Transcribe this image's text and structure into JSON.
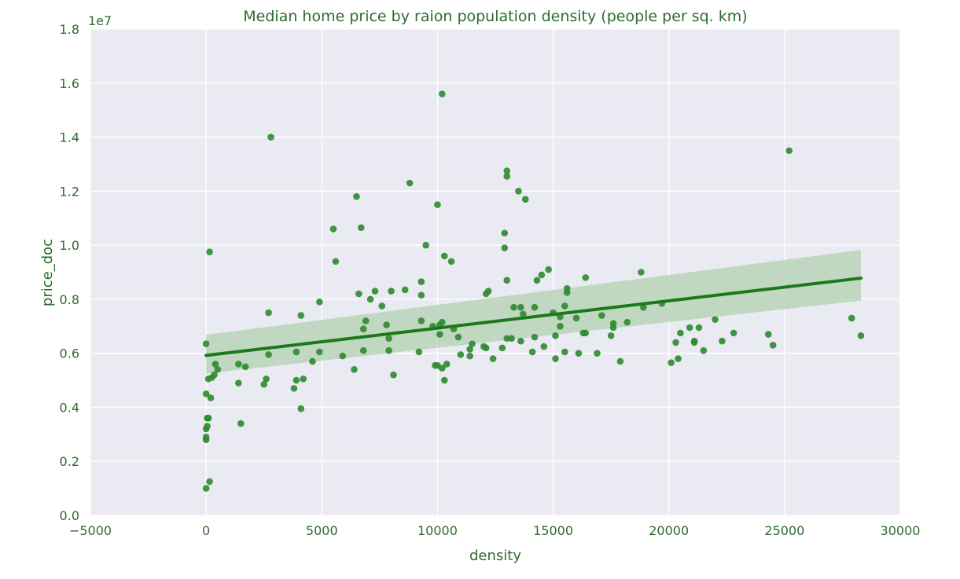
{
  "chart_data": {
    "type": "scatter",
    "title": "Median home price by raion population density (people per sq. km)",
    "xlabel": "density",
    "ylabel": "price_doc",
    "y_offset_label": "1e7",
    "xlim": [
      -5000,
      30000
    ],
    "ylim": [
      0,
      1.8
    ],
    "y_scale_multiplier": 10000000,
    "xticks": [
      -5000,
      0,
      5000,
      10000,
      15000,
      20000,
      25000,
      30000
    ],
    "yticks": [
      0.0,
      0.2,
      0.4,
      0.6,
      0.8,
      1.0,
      1.2,
      1.4,
      1.6,
      1.8
    ],
    "grid": true,
    "colors": {
      "background": "#eaeaf2",
      "grid": "#ffffff",
      "points": "#2e8b2e",
      "line": "#1a7a1a",
      "band": "#b9d4b9",
      "text": "#2e6b2e"
    },
    "regression": {
      "x": [
        0,
        28300
      ],
      "y": [
        0.592,
        0.878
      ],
      "ci_lower": [
        0.525,
        0.795
      ],
      "ci_upper": [
        0.668,
        0.982
      ]
    },
    "points": [
      [
        0,
        0.1
      ],
      [
        0,
        0.29
      ],
      [
        0,
        0.28
      ],
      [
        0,
        0.32
      ],
      [
        50,
        0.36
      ],
      [
        50,
        0.33
      ],
      [
        100,
        0.36
      ],
      [
        0,
        0.45
      ],
      [
        0,
        0.635
      ],
      [
        150,
        0.975
      ],
      [
        100,
        0.505
      ],
      [
        250,
        0.51
      ],
      [
        200,
        0.435
      ],
      [
        350,
        0.52
      ],
      [
        400,
        0.56
      ],
      [
        500,
        0.54
      ],
      [
        150,
        0.125
      ],
      [
        1400,
        0.56
      ],
      [
        1400,
        0.49
      ],
      [
        1500,
        0.34
      ],
      [
        1700,
        0.55
      ],
      [
        2500,
        0.485
      ],
      [
        2600,
        0.505
      ],
      [
        2700,
        0.595
      ],
      [
        2700,
        0.75
      ],
      [
        2800,
        1.4
      ],
      [
        3800,
        0.47
      ],
      [
        3900,
        0.5
      ],
      [
        3900,
        0.605
      ],
      [
        4100,
        0.395
      ],
      [
        4100,
        0.74
      ],
      [
        4200,
        0.505
      ],
      [
        4600,
        0.57
      ],
      [
        4900,
        0.605
      ],
      [
        4900,
        0.79
      ],
      [
        5500,
        1.06
      ],
      [
        5600,
        0.94
      ],
      [
        5900,
        0.59
      ],
      [
        6400,
        0.54
      ],
      [
        6500,
        1.18
      ],
      [
        6600,
        0.82
      ],
      [
        6700,
        1.065
      ],
      [
        6800,
        0.61
      ],
      [
        6800,
        0.69
      ],
      [
        6900,
        0.72
      ],
      [
        7100,
        0.8
      ],
      [
        7300,
        0.83
      ],
      [
        7600,
        0.775
      ],
      [
        7800,
        0.705
      ],
      [
        7900,
        0.61
      ],
      [
        7900,
        0.655
      ],
      [
        8000,
        0.83
      ],
      [
        8100,
        0.52
      ],
      [
        8600,
        0.835
      ],
      [
        8800,
        1.23
      ],
      [
        9200,
        0.605
      ],
      [
        9300,
        0.72
      ],
      [
        9300,
        0.815
      ],
      [
        9300,
        0.865
      ],
      [
        9500,
        1.0
      ],
      [
        9800,
        0.7
      ],
      [
        9900,
        0.555
      ],
      [
        10000,
        0.555
      ],
      [
        10000,
        1.15
      ],
      [
        10100,
        0.705
      ],
      [
        10100,
        0.67
      ],
      [
        10200,
        0.715
      ],
      [
        10200,
        0.545
      ],
      [
        10200,
        1.56
      ],
      [
        10300,
        0.96
      ],
      [
        10300,
        0.5
      ],
      [
        10400,
        0.56
      ],
      [
        10600,
        0.94
      ],
      [
        10700,
        0.69
      ],
      [
        10900,
        0.66
      ],
      [
        11000,
        0.595
      ],
      [
        11400,
        0.59
      ],
      [
        11400,
        0.615
      ],
      [
        11500,
        0.635
      ],
      [
        12000,
        0.625
      ],
      [
        12100,
        0.62
      ],
      [
        12100,
        0.82
      ],
      [
        12200,
        0.83
      ],
      [
        12400,
        0.58
      ],
      [
        12800,
        0.62
      ],
      [
        12900,
        0.99
      ],
      [
        12900,
        1.045
      ],
      [
        13000,
        0.655
      ],
      [
        13000,
        0.87
      ],
      [
        13000,
        1.255
      ],
      [
        13000,
        1.275
      ],
      [
        13200,
        0.655
      ],
      [
        13300,
        0.77
      ],
      [
        13500,
        1.2
      ],
      [
        13600,
        0.645
      ],
      [
        13600,
        0.77
      ],
      [
        13700,
        0.745
      ],
      [
        13800,
        1.17
      ],
      [
        14100,
        0.605
      ],
      [
        14200,
        0.66
      ],
      [
        14200,
        0.77
      ],
      [
        14300,
        0.87
      ],
      [
        14500,
        0.89
      ],
      [
        14600,
        0.625
      ],
      [
        14800,
        0.91
      ],
      [
        15000,
        0.75
      ],
      [
        15100,
        0.58
      ],
      [
        15100,
        0.665
      ],
      [
        15300,
        0.735
      ],
      [
        15300,
        0.7
      ],
      [
        15500,
        0.775
      ],
      [
        15500,
        0.605
      ],
      [
        15600,
        0.84
      ],
      [
        15600,
        0.825
      ],
      [
        16000,
        0.73
      ],
      [
        16100,
        0.6
      ],
      [
        16300,
        0.675
      ],
      [
        16400,
        0.675
      ],
      [
        16400,
        0.88
      ],
      [
        16900,
        0.6
      ],
      [
        17100,
        0.74
      ],
      [
        17500,
        0.665
      ],
      [
        17600,
        0.71
      ],
      [
        17600,
        0.695
      ],
      [
        17900,
        0.57
      ],
      [
        18200,
        0.715
      ],
      [
        18800,
        0.9
      ],
      [
        18900,
        0.77
      ],
      [
        19700,
        0.785
      ],
      [
        20100,
        0.565
      ],
      [
        20300,
        0.64
      ],
      [
        20400,
        0.58
      ],
      [
        20500,
        0.675
      ],
      [
        20900,
        0.695
      ],
      [
        21100,
        0.645
      ],
      [
        21100,
        0.64
      ],
      [
        21300,
        0.695
      ],
      [
        21500,
        0.61
      ],
      [
        22000,
        0.725
      ],
      [
        22300,
        0.645
      ],
      [
        22800,
        0.675
      ],
      [
        24300,
        0.67
      ],
      [
        24500,
        0.63
      ],
      [
        25200,
        1.35
      ],
      [
        27900,
        0.73
      ],
      [
        28300,
        0.665
      ]
    ]
  }
}
